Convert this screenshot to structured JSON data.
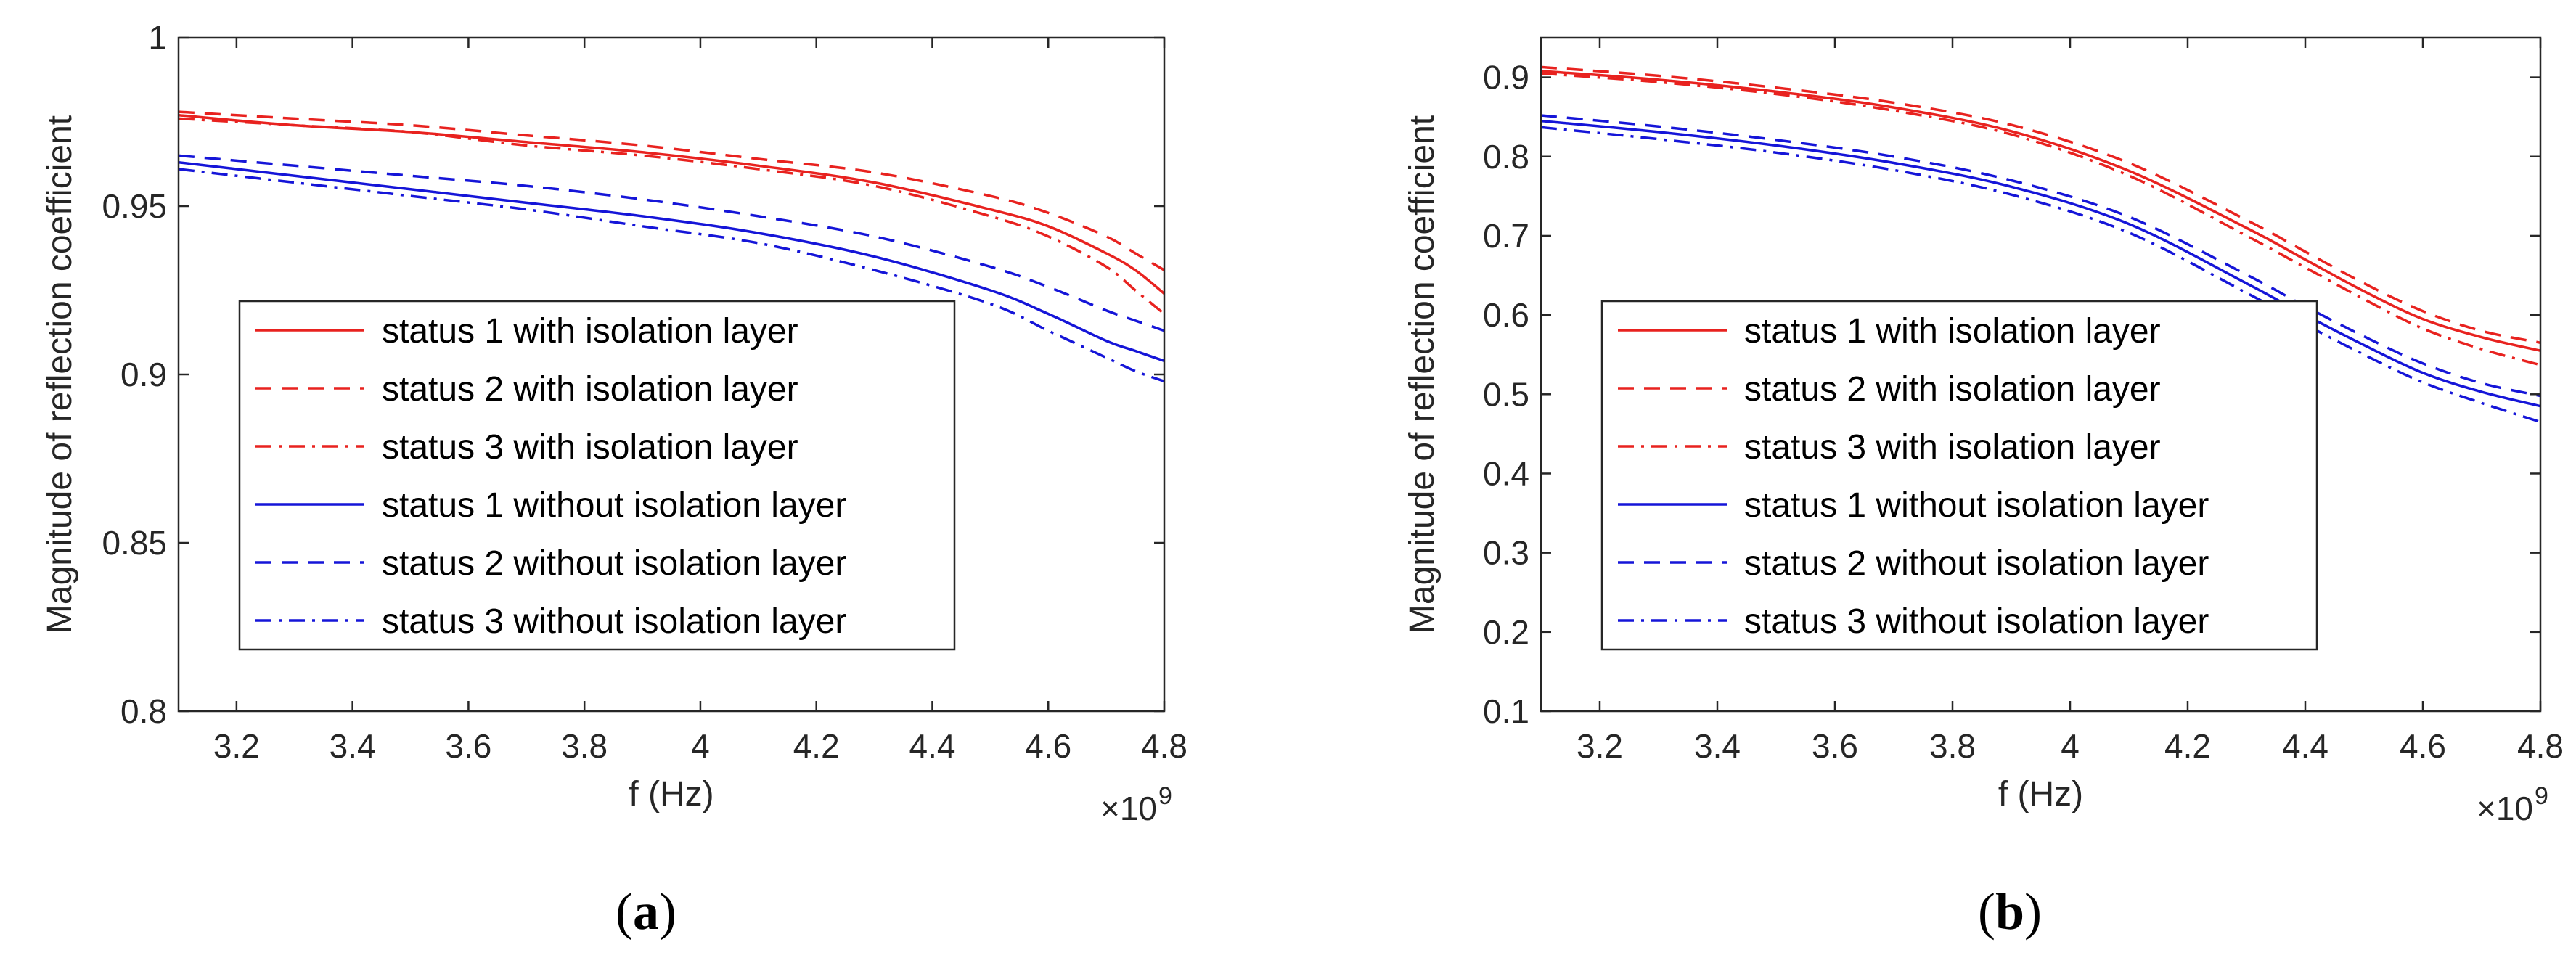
{
  "chart_data": [
    {
      "type": "line",
      "panel_label": "a",
      "xlabel": "f (Hz)",
      "ylabel": "Magnitude of reflection coefficient",
      "x_multiplier": "×10",
      "x_exponent": "9",
      "xlim": [
        3.1,
        4.8
      ],
      "ylim": [
        0.8,
        1.0
      ],
      "xticks": [
        "3.2",
        "3.4",
        "3.6",
        "3.8",
        "4",
        "4.2",
        "4.4",
        "4.6",
        "4.8"
      ],
      "xtick_values": [
        3.2,
        3.4,
        3.6,
        3.8,
        4.0,
        4.2,
        4.4,
        4.6,
        4.8
      ],
      "yticks": [
        "0.8",
        "0.85",
        "0.9",
        "0.95",
        "1"
      ],
      "ytick_values": [
        0.8,
        0.85,
        0.9,
        0.95,
        1.0
      ],
      "legend_position": "lower-left",
      "x": [
        3.1,
        3.3,
        3.5,
        3.7,
        3.9,
        4.1,
        4.3,
        4.5,
        4.6,
        4.7,
        4.75,
        4.8
      ],
      "series": [
        {
          "name": "status 1 with isolation layer",
          "color": "#e8221f",
          "dash": "solid",
          "values": [
            0.977,
            0.974,
            0.972,
            0.969,
            0.966,
            0.962,
            0.957,
            0.949,
            0.944,
            0.936,
            0.931,
            0.924
          ]
        },
        {
          "name": "status 2 with isolation layer",
          "color": "#e8221f",
          "dash": "dashed",
          "values": [
            0.978,
            0.976,
            0.974,
            0.971,
            0.968,
            0.964,
            0.96,
            0.953,
            0.948,
            0.941,
            0.936,
            0.931
          ]
        },
        {
          "name": "status 3 with isolation layer",
          "color": "#e8221f",
          "dash": "dashdot",
          "values": [
            0.976,
            0.974,
            0.972,
            0.968,
            0.965,
            0.961,
            0.956,
            0.947,
            0.941,
            0.932,
            0.925,
            0.918
          ]
        },
        {
          "name": "status 1 without isolation layer",
          "color": "#1515d8",
          "dash": "solid",
          "values": [
            0.963,
            0.959,
            0.955,
            0.951,
            0.947,
            0.942,
            0.935,
            0.925,
            0.918,
            0.91,
            0.907,
            0.904
          ]
        },
        {
          "name": "status 2 without isolation layer",
          "color": "#1515d8",
          "dash": "dashed",
          "values": [
            0.965,
            0.962,
            0.959,
            0.956,
            0.952,
            0.947,
            0.941,
            0.932,
            0.926,
            0.919,
            0.916,
            0.913
          ]
        },
        {
          "name": "status 3 without isolation layer",
          "color": "#1515d8",
          "dash": "dashdot",
          "values": [
            0.961,
            0.957,
            0.953,
            0.949,
            0.944,
            0.939,
            0.931,
            0.921,
            0.913,
            0.905,
            0.901,
            0.898
          ]
        }
      ]
    },
    {
      "type": "line",
      "panel_label": "b",
      "xlabel": "f (Hz)",
      "ylabel": "Magnitude of reflection coefficient",
      "x_multiplier": "×10",
      "x_exponent": "9",
      "xlim": [
        3.1,
        4.8
      ],
      "ylim": [
        0.1,
        0.95
      ],
      "xticks": [
        "3.2",
        "3.4",
        "3.6",
        "3.8",
        "4",
        "4.2",
        "4.4",
        "4.6",
        "4.8"
      ],
      "xtick_values": [
        3.2,
        3.4,
        3.6,
        3.8,
        4.0,
        4.2,
        4.4,
        4.6,
        4.8
      ],
      "yticks": [
        "0.1",
        "0.2",
        "0.3",
        "0.4",
        "0.5",
        "0.6",
        "0.7",
        "0.8",
        "0.9"
      ],
      "ytick_values": [
        0.1,
        0.2,
        0.3,
        0.4,
        0.5,
        0.6,
        0.7,
        0.8,
        0.9
      ],
      "legend_position": "lower-left",
      "x": [
        3.1,
        3.3,
        3.5,
        3.7,
        3.9,
        4.1,
        4.3,
        4.4,
        4.5,
        4.6,
        4.7,
        4.8
      ],
      "series": [
        {
          "name": "status 1 with isolation layer",
          "color": "#e8221f",
          "dash": "solid",
          "values": [
            0.908,
            0.897,
            0.882,
            0.862,
            0.832,
            0.782,
            0.71,
            0.67,
            0.63,
            0.595,
            0.572,
            0.555
          ]
        },
        {
          "name": "status 2 with isolation layer",
          "color": "#e8221f",
          "dash": "dashed",
          "values": [
            0.913,
            0.902,
            0.887,
            0.868,
            0.84,
            0.792,
            0.72,
            0.68,
            0.64,
            0.605,
            0.58,
            0.565
          ]
        },
        {
          "name": "status 3 with isolation layer",
          "color": "#e8221f",
          "dash": "dashdot",
          "values": [
            0.905,
            0.894,
            0.879,
            0.858,
            0.828,
            0.776,
            0.7,
            0.66,
            0.62,
            0.583,
            0.557,
            0.537
          ]
        },
        {
          "name": "status 1 without isolation layer",
          "color": "#1515d8",
          "dash": "solid",
          "values": [
            0.845,
            0.831,
            0.814,
            0.792,
            0.762,
            0.715,
            0.64,
            0.6,
            0.562,
            0.527,
            0.503,
            0.485
          ]
        },
        {
          "name": "status 2 without isolation layer",
          "color": "#1515d8",
          "dash": "dashed",
          "values": [
            0.852,
            0.838,
            0.821,
            0.8,
            0.77,
            0.724,
            0.651,
            0.611,
            0.573,
            0.539,
            0.514,
            0.498
          ]
        },
        {
          "name": "status 3 without isolation layer",
          "color": "#1515d8",
          "dash": "dashdot",
          "values": [
            0.837,
            0.822,
            0.805,
            0.783,
            0.752,
            0.704,
            0.628,
            0.588,
            0.55,
            0.515,
            0.489,
            0.465
          ]
        }
      ]
    }
  ]
}
